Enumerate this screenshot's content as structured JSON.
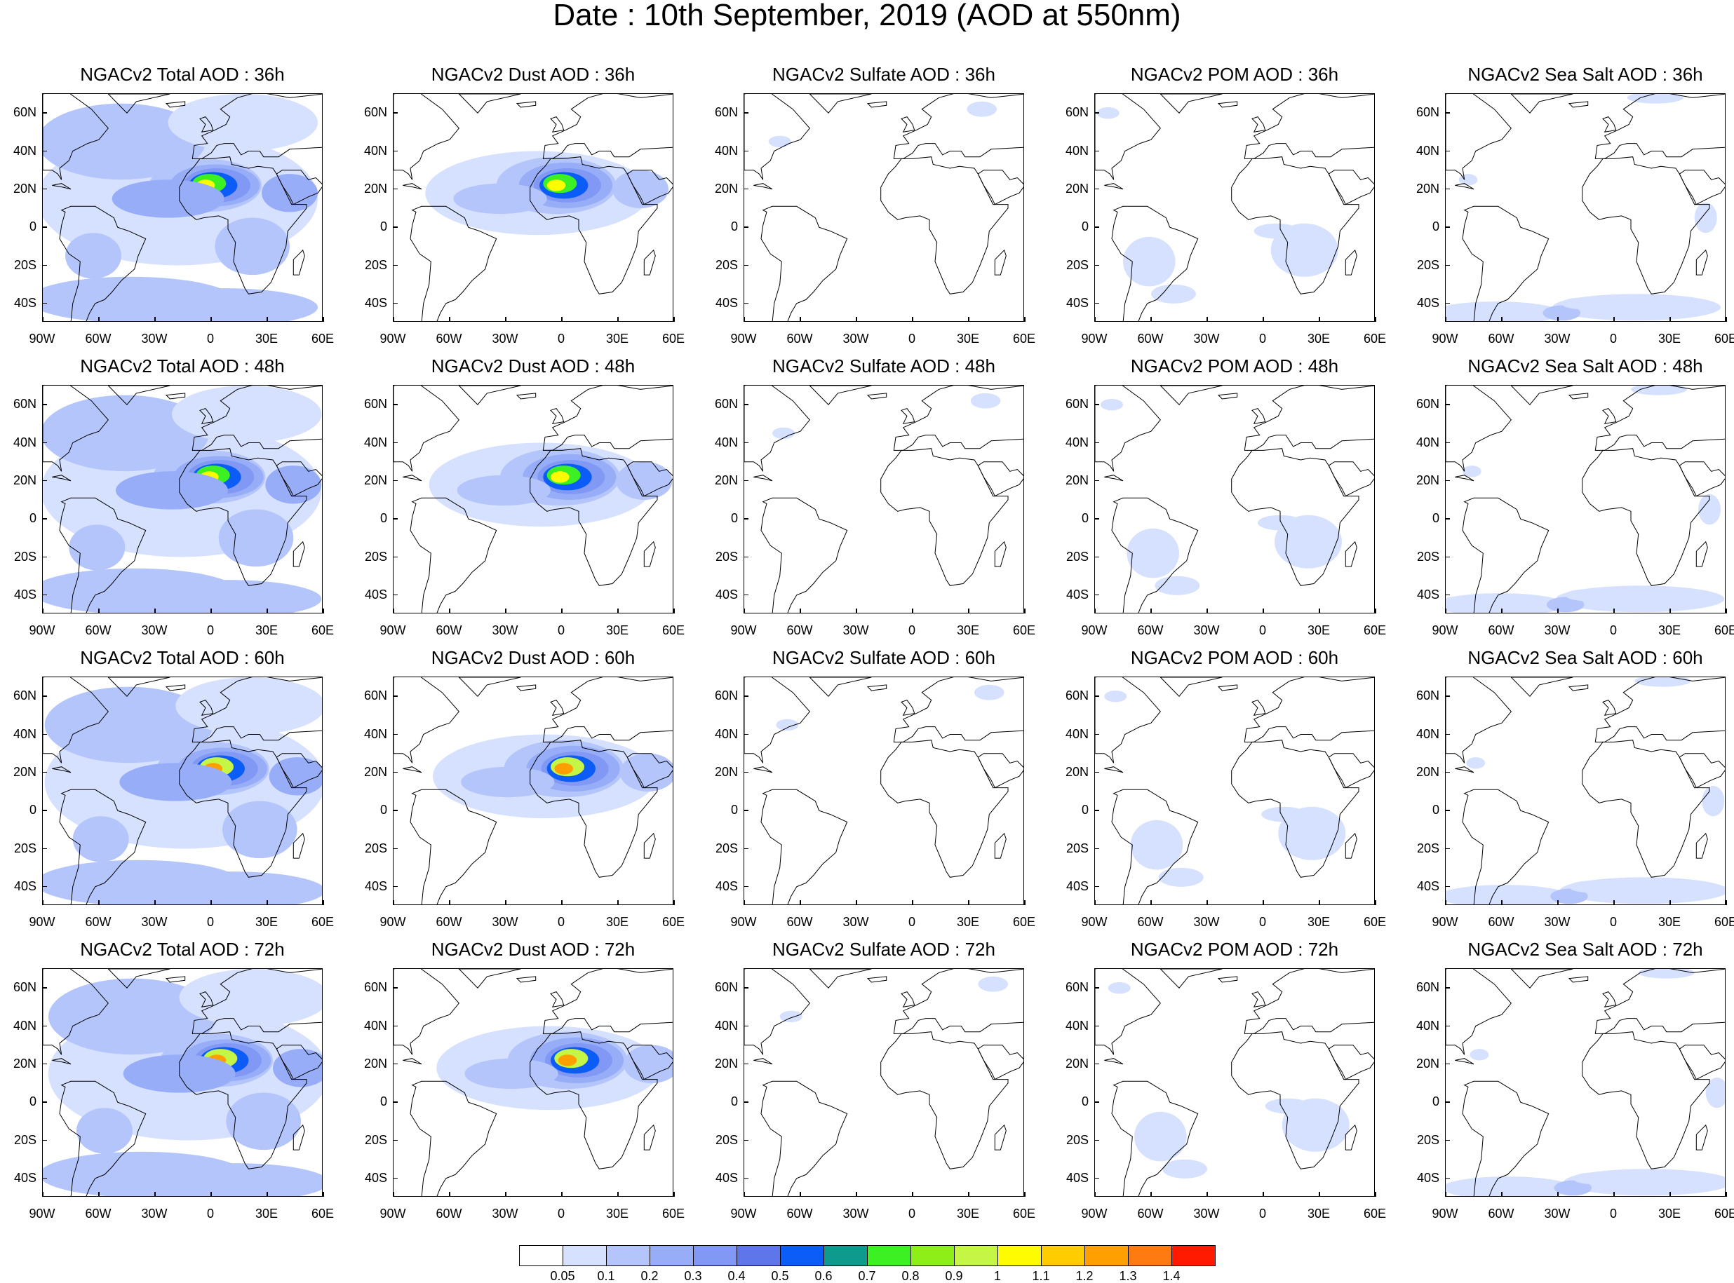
{
  "title": "Date : 10th September, 2019 (AOD at 550nm)",
  "colors": {
    "land_outline": "#000000",
    "levels": [
      "#ffffff",
      "#d6e0ff",
      "#b4c5fb",
      "#97adf7",
      "#8199f4",
      "#5f75ea",
      "#0c5df7",
      "#0e9b8d",
      "#3cf023",
      "#8cf018",
      "#c5f545",
      "#fffc00",
      "#ffcc00",
      "#ffa000",
      "#ff7a10",
      "#ff1a00"
    ]
  },
  "colorbar": {
    "labels": [
      "0.05",
      "0.1",
      "0.2",
      "0.3",
      "0.4",
      "0.5",
      "0.6",
      "0.7",
      "0.8",
      "0.9",
      "1",
      "1.1",
      "1.2",
      "1.3",
      "1.4"
    ]
  },
  "lat_labels": [
    "60N",
    "40N",
    "20N",
    "0",
    "20S",
    "40S"
  ],
  "lon_labels": [
    "90W",
    "60W",
    "30W",
    "0",
    "30E",
    "60E"
  ],
  "map_extent": {
    "lon_min": -90,
    "lon_max": 60,
    "lat_min": -50,
    "lat_max": 70
  },
  "rows": [
    {
      "hour": "36h",
      "panels": [
        {
          "title": "NGACv2 Total AOD : 36h",
          "species": "total"
        },
        {
          "title": "NGACv2 Dust AOD : 36h",
          "species": "dust"
        },
        {
          "title": "NGACv2 Sulfate AOD : 36h",
          "species": "sulfate"
        },
        {
          "title": "NGACv2 POM AOD : 36h",
          "species": "pom"
        },
        {
          "title": "NGACv2 Sea Salt AOD : 36h",
          "species": "seasalt"
        }
      ]
    },
    {
      "hour": "48h",
      "panels": [
        {
          "title": "NGACv2 Total AOD : 48h",
          "species": "total"
        },
        {
          "title": "NGACv2 Dust AOD : 48h",
          "species": "dust"
        },
        {
          "title": "NGACv2 Sulfate AOD : 48h",
          "species": "sulfate"
        },
        {
          "title": "NGACv2 POM AOD : 48h",
          "species": "pom"
        },
        {
          "title": "NGACv2 Sea Salt AOD : 48h",
          "species": "seasalt"
        }
      ]
    },
    {
      "hour": "60h",
      "panels": [
        {
          "title": "NGACv2 Total AOD : 60h",
          "species": "total"
        },
        {
          "title": "NGACv2 Dust AOD : 60h",
          "species": "dust"
        },
        {
          "title": "NGACv2 Sulfate AOD : 60h",
          "species": "sulfate"
        },
        {
          "title": "NGACv2 POM AOD : 60h",
          "species": "pom"
        },
        {
          "title": "NGACv2 Sea Salt AOD : 60h",
          "species": "seasalt"
        }
      ]
    },
    {
      "hour": "72h",
      "panels": [
        {
          "title": "NGACv2 Total AOD : 72h",
          "species": "total"
        },
        {
          "title": "NGACv2 Dust AOD : 72h",
          "species": "dust"
        },
        {
          "title": "NGACv2 Sulfate AOD : 72h",
          "species": "sulfate"
        },
        {
          "title": "NGACv2 POM AOD : 72h",
          "species": "pom"
        },
        {
          "title": "NGACv2 Sea Salt  AOD : 72h",
          "species": "seasalt"
        }
      ]
    }
  ]
}
